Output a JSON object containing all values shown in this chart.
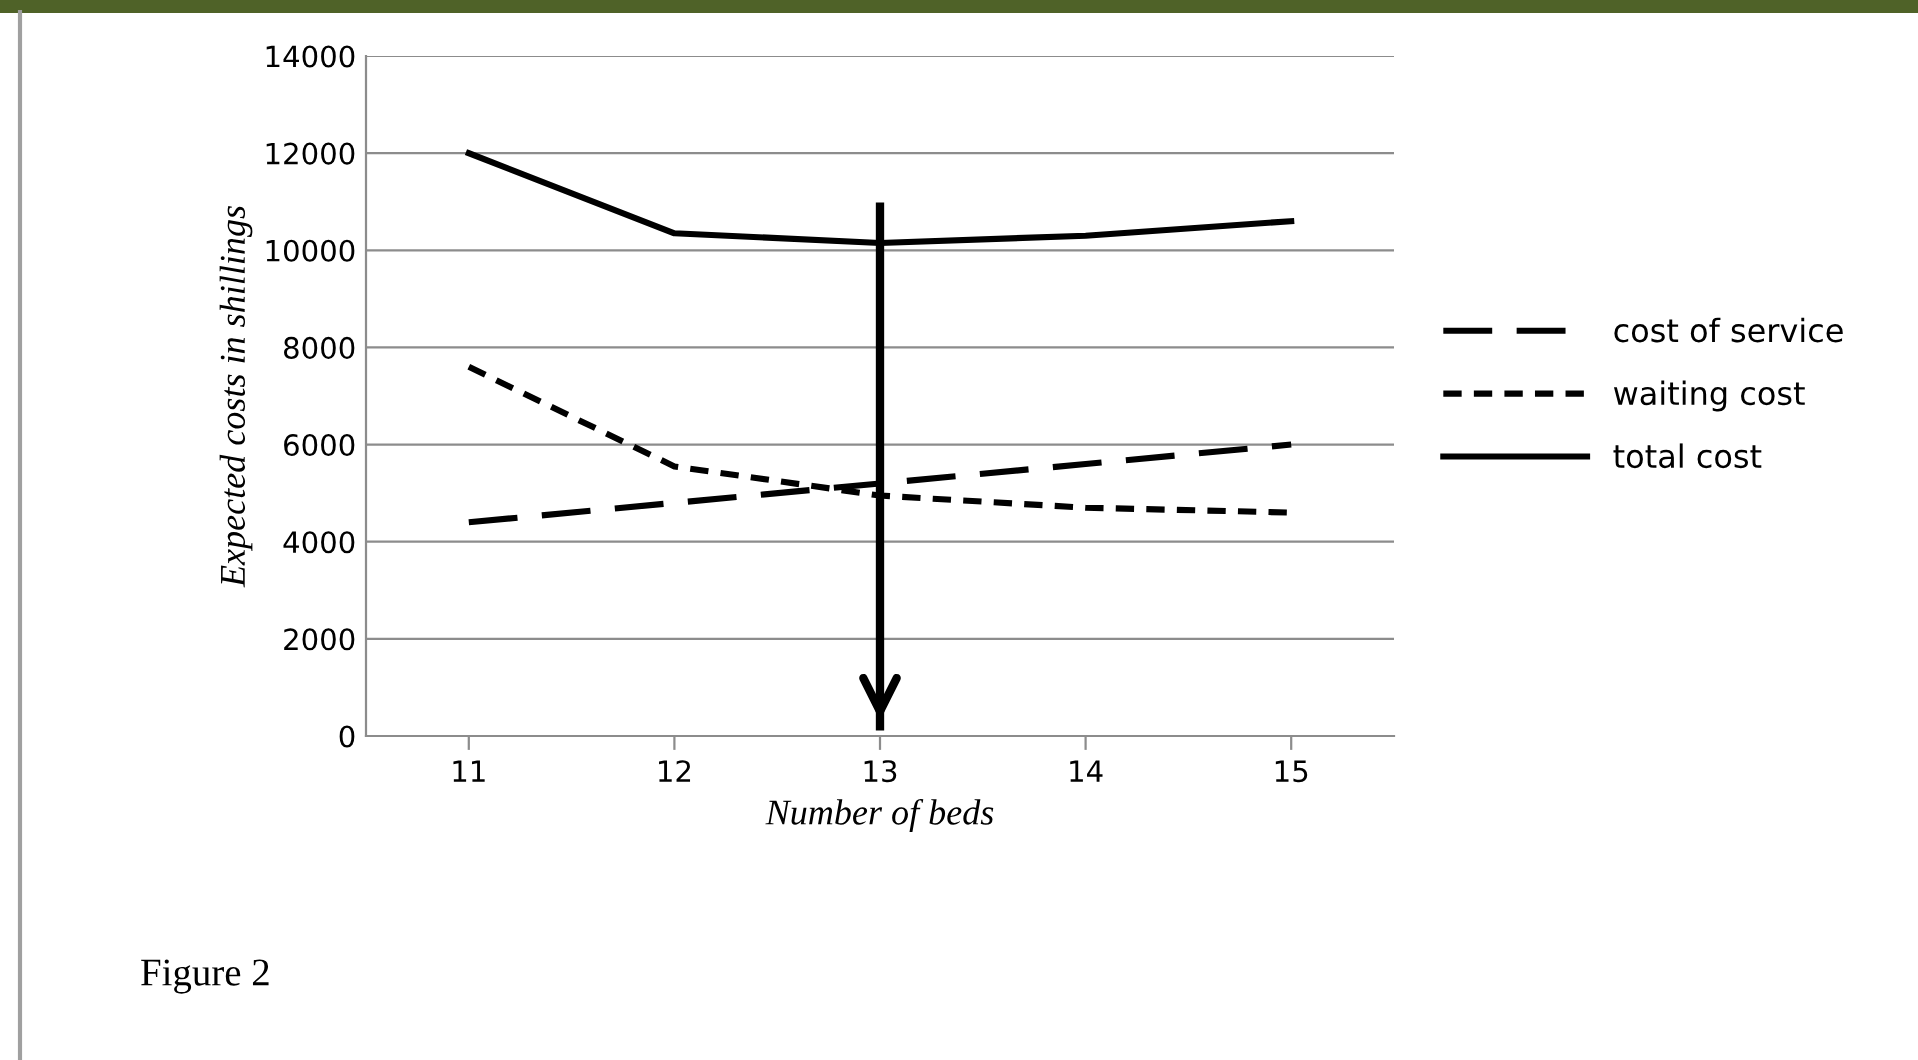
{
  "chart_data": {
    "type": "line",
    "xlabel": "Number of beds",
    "ylabel": "Expected costs in shillings",
    "x": [
      11,
      12,
      13,
      14,
      15
    ],
    "xlim": [
      10.5,
      15.5
    ],
    "xticks": [
      11,
      12,
      13,
      14,
      15
    ],
    "ylim": [
      0,
      14000
    ],
    "yticks": [
      0,
      2000,
      4000,
      6000,
      8000,
      10000,
      12000,
      14000
    ],
    "grid": "y",
    "legend": "right",
    "marker": "none",
    "series": [
      {
        "name": "cost of service",
        "color": "#000000",
        "line_style": "dashed",
        "values": [
          4400,
          4800,
          5200,
          5600,
          6000
        ]
      },
      {
        "name": "waiting cost",
        "color": "#000000",
        "line_style": "dotted",
        "values": [
          7600,
          5550,
          4950,
          4700,
          4600
        ]
      },
      {
        "name": "total cost",
        "color": "#000000",
        "line_style": "solid",
        "values": [
          12000,
          10350,
          10150,
          10300,
          10600
        ]
      },
      {
        "color": "#000000",
        "line_style": "solid",
        "x": [
          13,
          13
        ],
        "values": [
          10900,
          200
        ]
      }
    ],
    "annotations": [
      "Figure 2"
    ]
  }
}
